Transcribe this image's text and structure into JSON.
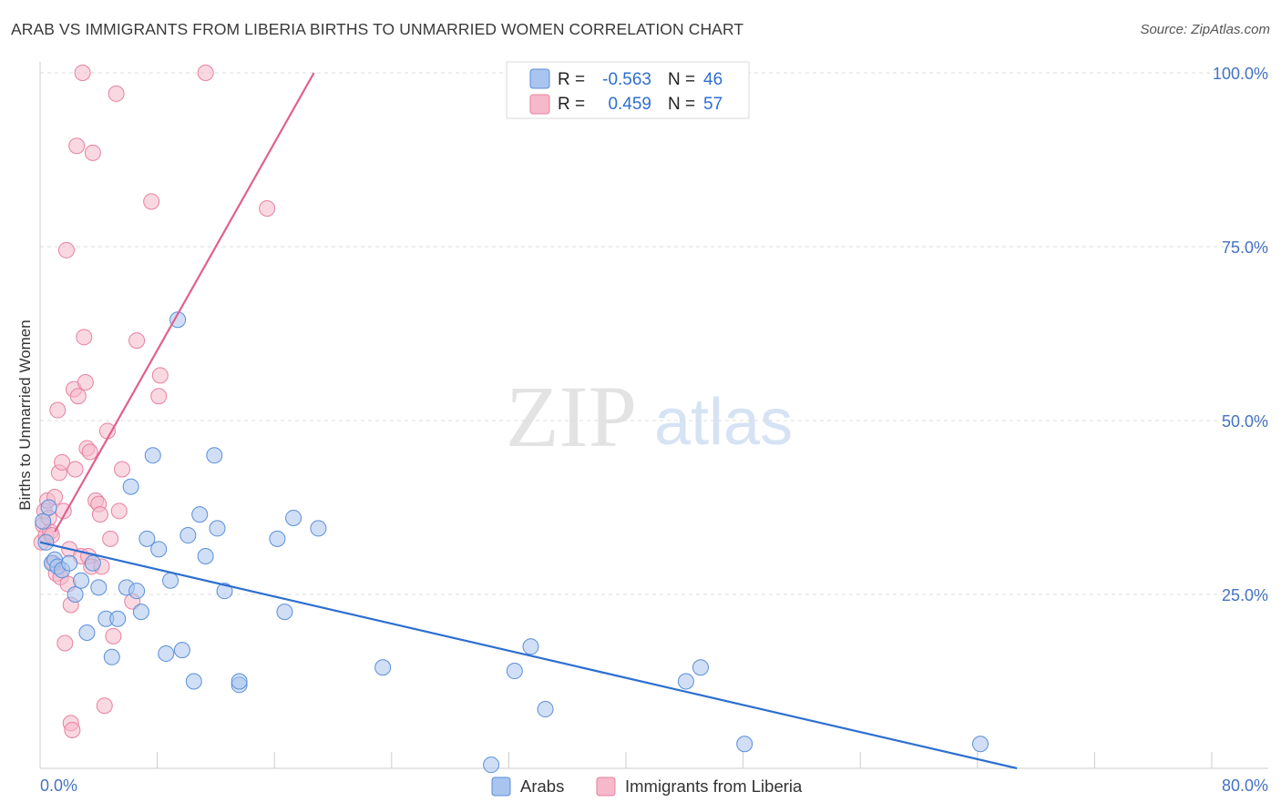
{
  "header": {
    "title": "ARAB VS IMMIGRANTS FROM LIBERIA BIRTHS TO UNMARRIED WOMEN CORRELATION CHART",
    "source": "Source: ZipAtlas.com"
  },
  "watermark": {
    "zip": "ZIP",
    "atlas": "atlas"
  },
  "legend_top": [
    {
      "r_label": "R =",
      "r_value": "-0.563",
      "n_label": "N =",
      "n_value": "46"
    },
    {
      "r_label": "R =",
      "r_value": "0.459",
      "n_label": "N =",
      "n_value": "57"
    }
  ],
  "legend_bottom": [
    "Arabs",
    "Immigrants from Liberia"
  ],
  "colors": {
    "arabs_fill": "#a9c4ef",
    "arabs_stroke": "#5a8fd8",
    "arabs_line": "#2d6fd0",
    "liberia_fill": "#f6b8cb",
    "liberia_stroke": "#e8809f",
    "liberia_line": "#e0608c",
    "tick_text": "#4472c4",
    "grid": "#dcdcdc"
  },
  "chart_data": {
    "type": "scatter",
    "title": "ARAB VS IMMIGRANTS FROM LIBERIA BIRTHS TO UNMARRIED WOMEN CORRELATION CHART",
    "xlabel": "",
    "ylabel": "Births to Unmarried Women",
    "xlim": [
      0,
      80
    ],
    "ylim": [
      0,
      100
    ],
    "x_tick_labels": [
      "0.0%",
      "80.0%"
    ],
    "y_tick_labels": [
      "100.0%",
      "75.0%",
      "50.0%",
      "25.0%"
    ],
    "y_ticks": [
      100,
      75,
      50,
      25
    ],
    "grid": true,
    "series": [
      {
        "name": "Arabs",
        "r": -0.563,
        "n": 46,
        "trend": {
          "x": [
            0,
            66.7
          ],
          "y": [
            32.5,
            0
          ]
        },
        "points": [
          [
            0.2,
            35.5
          ],
          [
            0.4,
            32.5
          ],
          [
            0.6,
            37.5
          ],
          [
            0.8,
            29.5
          ],
          [
            1.0,
            30.0
          ],
          [
            1.2,
            29.0
          ],
          [
            1.5,
            28.5
          ],
          [
            2.0,
            29.5
          ],
          [
            2.4,
            25.0
          ],
          [
            2.8,
            27.0
          ],
          [
            3.2,
            19.5
          ],
          [
            3.6,
            29.5
          ],
          [
            4.0,
            26.0
          ],
          [
            4.5,
            21.5
          ],
          [
            4.9,
            16.0
          ],
          [
            5.3,
            21.5
          ],
          [
            5.9,
            26.0
          ],
          [
            6.2,
            40.5
          ],
          [
            6.6,
            25.5
          ],
          [
            6.9,
            22.5
          ],
          [
            7.3,
            33.0
          ],
          [
            7.7,
            45.0
          ],
          [
            8.1,
            31.5
          ],
          [
            8.6,
            16.5
          ],
          [
            8.9,
            27.0
          ],
          [
            9.4,
            64.5
          ],
          [
            9.7,
            17.0
          ],
          [
            10.1,
            33.5
          ],
          [
            10.5,
            12.5
          ],
          [
            10.9,
            36.5
          ],
          [
            11.3,
            30.5
          ],
          [
            11.9,
            45.0
          ],
          [
            12.1,
            34.5
          ],
          [
            12.6,
            25.5
          ],
          [
            13.6,
            12.0
          ],
          [
            13.6,
            12.5
          ],
          [
            16.2,
            33.0
          ],
          [
            16.7,
            22.5
          ],
          [
            17.3,
            36.0
          ],
          [
            19.0,
            34.5
          ],
          [
            23.4,
            14.5
          ],
          [
            30.8,
            0.5
          ],
          [
            32.4,
            14.0
          ],
          [
            33.5,
            17.5
          ],
          [
            34.5,
            8.5
          ],
          [
            44.1,
            12.5
          ],
          [
            45.1,
            14.5
          ],
          [
            48.1,
            3.5
          ],
          [
            64.2,
            3.5
          ]
        ]
      },
      {
        "name": "Immigrants from Liberia",
        "r": 0.459,
        "n": 57,
        "trend": {
          "x": [
            1.0,
            18.7
          ],
          "y": [
            34.0,
            100
          ]
        },
        "points": [
          [
            0.1,
            32.5
          ],
          [
            0.2,
            35.0
          ],
          [
            0.3,
            37.0
          ],
          [
            0.4,
            33.5
          ],
          [
            0.5,
            38.5
          ],
          [
            0.6,
            36.0
          ],
          [
            0.7,
            34.0
          ],
          [
            0.8,
            33.5
          ],
          [
            0.9,
            29.5
          ],
          [
            1.0,
            39.0
          ],
          [
            1.1,
            28.0
          ],
          [
            1.2,
            51.5
          ],
          [
            1.3,
            42.5
          ],
          [
            1.4,
            27.5
          ],
          [
            1.5,
            44.0
          ],
          [
            1.6,
            37.0
          ],
          [
            1.7,
            18.0
          ],
          [
            1.8,
            74.5
          ],
          [
            1.9,
            26.5
          ],
          [
            2.0,
            31.5
          ],
          [
            2.1,
            6.5
          ],
          [
            2.1,
            23.5
          ],
          [
            2.2,
            5.5
          ],
          [
            2.3,
            54.5
          ],
          [
            2.4,
            43.0
          ],
          [
            2.5,
            89.5
          ],
          [
            2.6,
            53.5
          ],
          [
            2.8,
            30.5
          ],
          [
            2.9,
            100.0
          ],
          [
            3.0,
            62.0
          ],
          [
            3.1,
            55.5
          ],
          [
            3.2,
            46.0
          ],
          [
            3.3,
            30.5
          ],
          [
            3.4,
            45.5
          ],
          [
            3.5,
            29.0
          ],
          [
            3.6,
            88.5
          ],
          [
            3.8,
            38.5
          ],
          [
            4.0,
            38.0
          ],
          [
            4.1,
            36.5
          ],
          [
            4.2,
            29.0
          ],
          [
            4.4,
            9.0
          ],
          [
            4.6,
            48.5
          ],
          [
            4.8,
            33.0
          ],
          [
            5.0,
            19.0
          ],
          [
            5.2,
            97.0
          ],
          [
            5.4,
            37.0
          ],
          [
            5.6,
            43.0
          ],
          [
            6.3,
            24.0
          ],
          [
            6.6,
            61.5
          ],
          [
            7.6,
            81.5
          ],
          [
            8.1,
            53.5
          ],
          [
            8.2,
            56.5
          ],
          [
            11.3,
            100.0
          ],
          [
            15.5,
            80.5
          ]
        ]
      }
    ]
  }
}
